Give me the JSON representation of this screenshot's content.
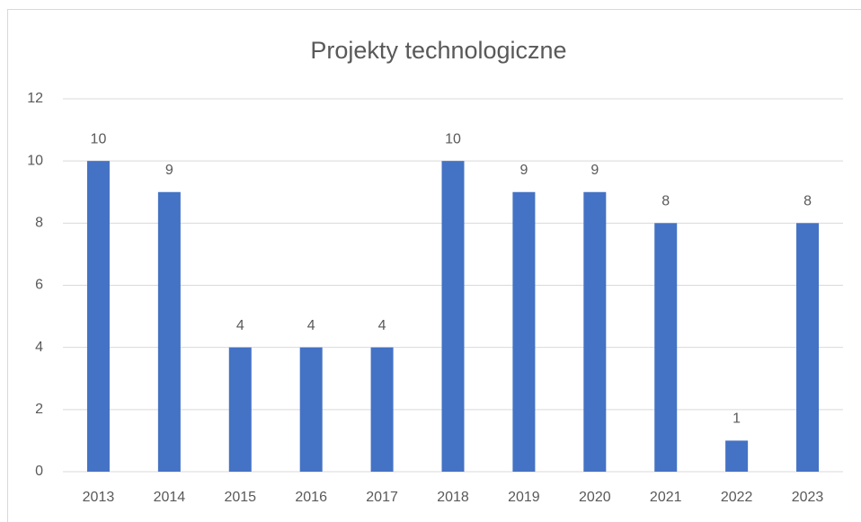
{
  "chart_data": {
    "type": "bar",
    "title": "Projekty technologiczne",
    "categories": [
      "2013",
      "2014",
      "2015",
      "2016",
      "2017",
      "2018",
      "2019",
      "2020",
      "2021",
      "2022",
      "2023"
    ],
    "values": [
      10,
      9,
      4,
      4,
      4,
      10,
      9,
      9,
      8,
      1,
      8
    ],
    "color": "#4472c4",
    "ylim": [
      0,
      12
    ],
    "yticks": [
      0,
      2,
      4,
      6,
      8,
      10,
      12
    ],
    "grid": true
  }
}
